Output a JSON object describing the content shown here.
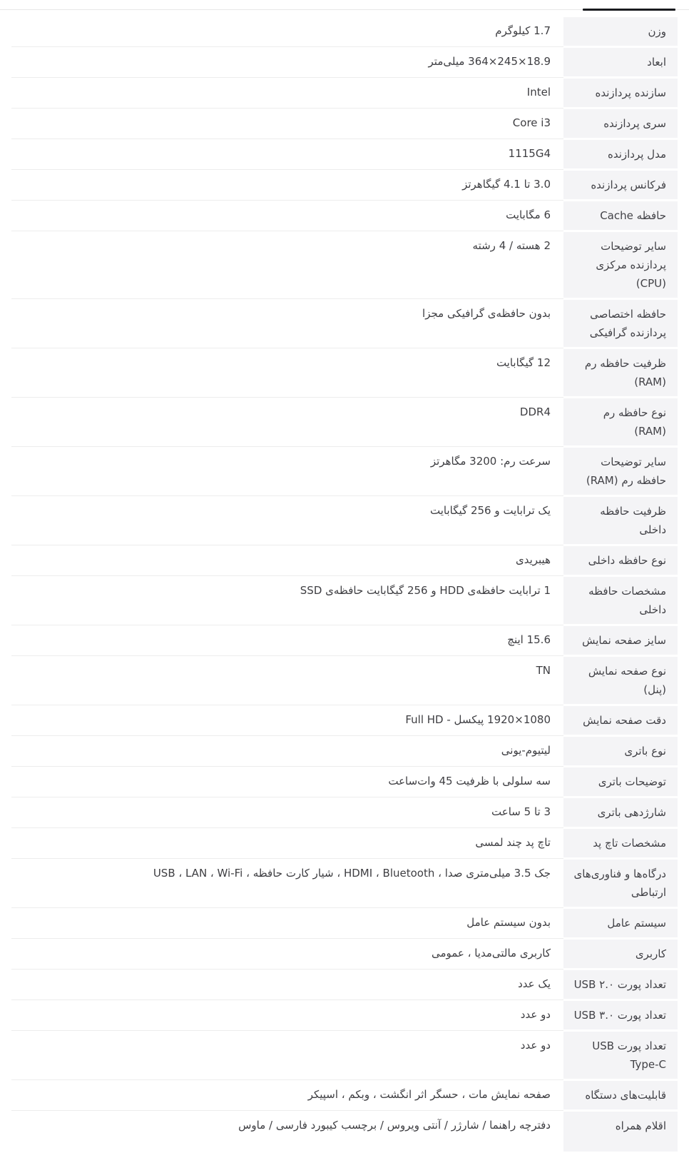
{
  "page": {
    "language": "fa",
    "direction": "rtl",
    "background_color": "#ffffff"
  },
  "tab_bar": {
    "divider_color": "#e8e8e8",
    "active_tab_indicator_color": "#1a1b1f"
  },
  "table": {
    "label_background_color": "#f4f4f6",
    "row_divider_color": "#ededed",
    "text_color": "#3f3f44",
    "rows": [
      {
        "label": "وزن",
        "value": "1.7 کیلوگرم"
      },
      {
        "label": "ابعاد",
        "value": "18.9×245×364 میلی‌متر"
      },
      {
        "label": "سازنده پردازنده",
        "value": "Intel"
      },
      {
        "label": "سری پردازنده",
        "value": "Core i3"
      },
      {
        "label": "مدل پردازنده",
        "value": "1115G4"
      },
      {
        "label": "فرکانس پردازنده",
        "value": "3.0 تا 4.1 گیگاهرتز"
      },
      {
        "label": "حافظه Cache",
        "value": "6 مگابایت"
      },
      {
        "label": "سایر توضیحات پردازنده مرکزی (CPU)",
        "value": "2 هسته / 4 رشته"
      },
      {
        "label": "حافظه اختصاصی پردازنده گرافیکی",
        "value": "بدون حافظه‌ی گرافیکی مجزا"
      },
      {
        "label": "ظرفیت حافظه رم (RAM)",
        "value": "12 گیگابایت"
      },
      {
        "label": "نوع حافظه رم (RAM)",
        "value": "DDR4"
      },
      {
        "label": "سایر توضیحات حافظه رم (RAM)",
        "value": "سرعت رم: 3200 مگاهرتز"
      },
      {
        "label": "ظرفیت حافظه داخلی",
        "value": "یک ترابایت و 256 گیگابایت"
      },
      {
        "label": "نوع حافظه داخلی",
        "value": "هیبریدی"
      },
      {
        "label": "مشخصات حافظه داخلی",
        "value": "1 ترابایت حافظه‌ی HDD و 256 گیگابایت حافظه‌ی SSD"
      },
      {
        "label": "سایز صفحه نمایش",
        "value": "15.6 اینچ"
      },
      {
        "label": "نوع صفحه نمایش (پنل)",
        "value": "TN"
      },
      {
        "label": "دقت صفحه نمایش",
        "value": "1080×1920 پیکسل - Full HD"
      },
      {
        "label": "نوع باتری",
        "value": "لیتیوم-یونی"
      },
      {
        "label": "توضیحات باتری",
        "value": "سه سلولی با ظرفیت 45 وات‌ساعت"
      },
      {
        "label": "شارژدهی باتری",
        "value": "3 تا 5 ساعت"
      },
      {
        "label": "مشخصات تاچ پد",
        "value": "تاچ پد چند لمسی"
      },
      {
        "label": "درگاه‌ها و فناوری‌های ارتباطی",
        "value": "جک 3.5 میلی‌متری صدا ، HDMI ، Bluetooth ، شیار کارت حافظه ، USB ، LAN ، Wi-Fi"
      },
      {
        "label": "سیستم عامل",
        "value": "بدون سیستم عامل"
      },
      {
        "label": "کاربری",
        "value": "کاربری مالتی‌مدیا ، عمومی"
      },
      {
        "label": "تعداد پورت USB ۲.۰",
        "value": "یک عدد"
      },
      {
        "label": "تعداد پورت USB ۳.۰",
        "value": "دو عدد"
      },
      {
        "label": "تعداد پورت USB Type-C",
        "value": "دو عدد"
      },
      {
        "label": "قابلیت‌های دستگاه",
        "value": "صفحه نمایش مات ، حسگر اثر انگشت ، وبکم ، اسپیکر"
      },
      {
        "label": "اقلام همراه",
        "value": "دفترچه راهنما / شارژر / آنتی ویروس / برچسب کیبورد فارسی / ماوس"
      }
    ]
  }
}
